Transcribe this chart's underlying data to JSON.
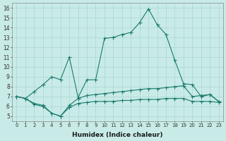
{
  "xlabel": "Humidex (Indice chaleur)",
  "ylabel": "",
  "bg_color": "#c8ebe8",
  "grid_color": "#b0d8d4",
  "line_color": "#1a7a6a",
  "xlim": [
    -0.5,
    23.5
  ],
  "ylim": [
    4.5,
    16.5
  ],
  "xticks": [
    0,
    1,
    2,
    3,
    4,
    5,
    6,
    7,
    8,
    9,
    10,
    11,
    12,
    13,
    14,
    15,
    16,
    17,
    18,
    19,
    20,
    21,
    22,
    23
  ],
  "yticks": [
    5,
    6,
    7,
    8,
    9,
    10,
    11,
    12,
    13,
    14,
    15,
    16
  ],
  "line1_x": [
    0,
    1,
    2,
    3,
    4,
    5,
    6,
    7,
    8,
    9,
    10,
    11,
    12,
    13,
    14,
    15,
    16,
    17,
    18,
    19,
    20,
    21,
    22,
    23
  ],
  "line1_y": [
    7.0,
    6.8,
    7.5,
    8.2,
    9.0,
    8.7,
    11.0,
    6.9,
    8.7,
    8.7,
    12.9,
    13.0,
    13.3,
    13.5,
    14.5,
    15.9,
    14.3,
    13.3,
    10.7,
    8.3,
    8.2,
    7.0,
    7.2,
    6.5
  ],
  "line2_x": [
    0,
    1,
    2,
    3,
    4,
    5,
    6,
    7,
    8,
    9,
    10,
    11,
    12,
    13,
    14,
    15,
    16,
    17,
    18,
    19,
    20,
    21,
    22,
    23
  ],
  "line2_y": [
    7.0,
    6.8,
    6.3,
    6.1,
    5.3,
    5.0,
    6.1,
    6.8,
    7.1,
    7.2,
    7.3,
    7.4,
    7.5,
    7.6,
    7.7,
    7.8,
    7.8,
    7.9,
    8.0,
    8.1,
    7.0,
    7.1,
    7.2,
    6.5
  ],
  "line3_x": [
    0,
    1,
    2,
    3,
    4,
    5,
    6,
    7,
    8,
    9,
    10,
    11,
    12,
    13,
    14,
    15,
    16,
    17,
    18,
    19,
    20,
    21,
    22,
    23
  ],
  "line3_y": [
    7.0,
    6.8,
    6.2,
    6.0,
    5.3,
    5.0,
    5.9,
    6.3,
    6.4,
    6.5,
    6.5,
    6.5,
    6.6,
    6.6,
    6.7,
    6.7,
    6.7,
    6.8,
    6.8,
    6.8,
    6.5,
    6.5,
    6.5,
    6.4
  ]
}
